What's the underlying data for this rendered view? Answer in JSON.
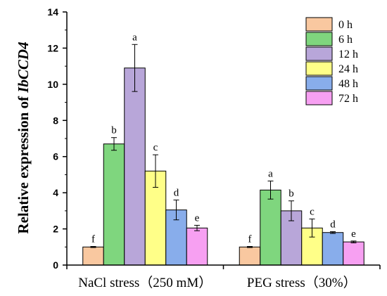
{
  "chart_data": {
    "type": "bar",
    "title": "",
    "xlabel": "",
    "ylabel_prefix": "Relative expression of ",
    "ylabel_gene": "IbCCD4",
    "ylim": [
      0,
      14
    ],
    "yticks": [
      0,
      2,
      4,
      6,
      8,
      10,
      12,
      14
    ],
    "grid": false,
    "legend_position": "top-right",
    "categories": [
      "NaCl stress（250 mM）",
      "PEG stress（30%）"
    ],
    "series": [
      {
        "name": "0 h",
        "color": "#F9C8A0",
        "values": [
          1.0,
          1.0
        ],
        "errors": [
          0.03,
          0.03
        ],
        "labels": [
          "f",
          "f"
        ]
      },
      {
        "name": "6 h",
        "color": "#7FD67E",
        "values": [
          6.7,
          4.15
        ],
        "errors": [
          0.35,
          0.5
        ],
        "labels": [
          "b",
          "a"
        ]
      },
      {
        "name": "12 h",
        "color": "#B8A6D9",
        "values": [
          10.9,
          3.0
        ],
        "errors": [
          1.3,
          0.55
        ],
        "labels": [
          "a",
          "b"
        ]
      },
      {
        "name": "24 h",
        "color": "#FFFF88",
        "values": [
          5.2,
          2.05
        ],
        "errors": [
          0.9,
          0.5
        ],
        "labels": [
          "c",
          "c"
        ]
      },
      {
        "name": "48 h",
        "color": "#88ADEB",
        "values": [
          3.05,
          1.8
        ],
        "errors": [
          0.55,
          0.05
        ],
        "labels": [
          "d",
          "d"
        ]
      },
      {
        "name": "72 h",
        "color": "#F7A0F2",
        "values": [
          2.05,
          1.28
        ],
        "errors": [
          0.15,
          0.05
        ],
        "labels": [
          "e",
          "e"
        ]
      }
    ]
  }
}
